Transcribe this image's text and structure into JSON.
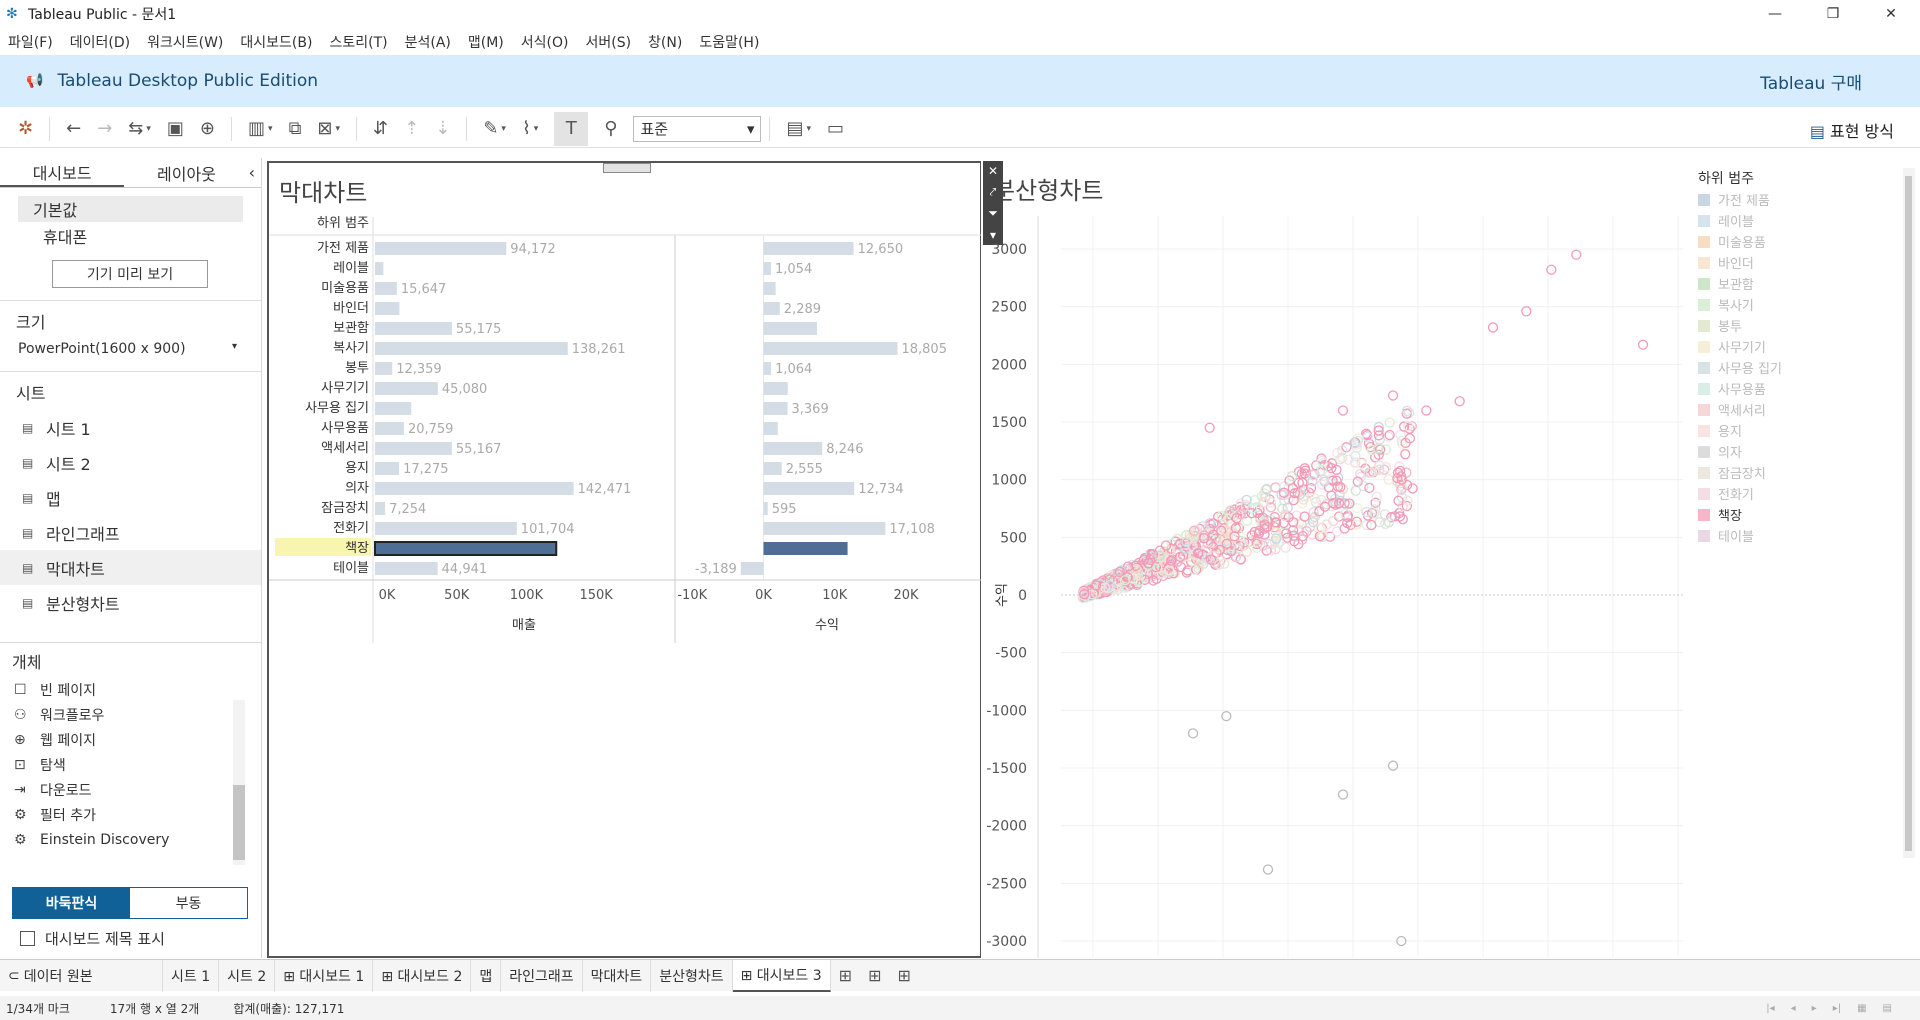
{
  "window": {
    "title": "Tableau Public - 문서1",
    "minimize": "—",
    "maximize": "❐",
    "close": "✕"
  },
  "menu": [
    "파일(F)",
    "데이터(D)",
    "워크시트(W)",
    "대시보드(B)",
    "스토리(T)",
    "분석(A)",
    "맵(M)",
    "서식(O)",
    "서버(S)",
    "창(N)",
    "도움말(H)"
  ],
  "banner": {
    "edition": "Tableau Desktop Public Edition",
    "buy": "Tableau 구매"
  },
  "toolbar": {
    "fit_select": "표준",
    "show_me": "표현 방식"
  },
  "sidebar": {
    "tabs": [
      "대시보드",
      "레이아웃"
    ],
    "collapse": "‹",
    "device_default": "기본값",
    "device_phone": "휴대폰",
    "preview_button": "기기 미리 보기",
    "size_title": "크기",
    "size_value": "PowerPoint(1600 x 900)",
    "sheets_title": "시트",
    "sheets": [
      "시트 1",
      "시트 2",
      "맵",
      "라인그래프",
      "막대차트",
      "분산형차트"
    ],
    "objects_title": "개체",
    "objects": [
      "빈 페이지",
      "워크플로우",
      "웹 페이지",
      "탐색",
      "다운로드",
      "필터 추가",
      "Einstein Discovery"
    ],
    "tiled": "바둑판식",
    "floating": "부동",
    "show_title": "대시보드 제목 표시"
  },
  "bar_chart": {
    "title": "막대차트",
    "row_header": "하위 범주",
    "x1_label": "매출",
    "x2_label": "수익",
    "x1_ticks": [
      "0K",
      "50K",
      "100K",
      "150K"
    ],
    "x2_ticks": [
      "-10K",
      "0K",
      "10K",
      "20K"
    ]
  },
  "chart_data": [
    {
      "type": "bar",
      "title": "막대차트",
      "categories": [
        "가전 제품",
        "레이블",
        "미술용품",
        "바인더",
        "보관함",
        "복사기",
        "봉투",
        "사무기기",
        "사무용 집기",
        "사무용품",
        "액세서리",
        "용지",
        "의자",
        "잠금장치",
        "전화기",
        "책장",
        "테이블"
      ],
      "series": [
        {
          "name": "매출",
          "values": [
            94172,
            6000,
            15647,
            17500,
            55175,
            138261,
            12359,
            45080,
            26000,
            20759,
            55167,
            17275,
            142471,
            7254,
            101704,
            130000,
            44941
          ],
          "labels": [
            "94,172",
            "",
            "15,647",
            "",
            "55,175",
            "138,261",
            "12,359",
            "45,080",
            "",
            "20,759",
            "55,167",
            "17,275",
            "142,471",
            "7,254",
            "101,704",
            "",
            "44,941"
          ]
        },
        {
          "name": "수익",
          "values": [
            12650,
            1054,
            1700,
            2289,
            7500,
            18805,
            1064,
            3400,
            3369,
            2000,
            8246,
            2555,
            12734,
            595,
            17108,
            11800,
            -3189
          ],
          "labels": [
            "12,650",
            "1,054",
            "",
            "2,289",
            "",
            "18,805",
            "1,064",
            "",
            "3,369",
            "",
            "8,246",
            "2,555",
            "12,734",
            "595",
            "17,108",
            "",
            "-3,189"
          ]
        }
      ],
      "highlight": "책장",
      "xlim_sales": [
        0,
        175000
      ],
      "xlim_profit": [
        -12000,
        28000
      ]
    },
    {
      "type": "scatter",
      "title": "분산형차트",
      "ylabel": "수익",
      "y_ticks": [
        3000,
        2500,
        2000,
        1500,
        1000,
        500,
        0,
        -500,
        -1000,
        -1500,
        -2000,
        -2500,
        -3000
      ],
      "ylim": [
        -3200,
        3300
      ],
      "points_sample": [
        [
          2900,
          2950
        ],
        [
          2750,
          2820
        ],
        [
          2600,
          2460
        ],
        [
          2400,
          2320
        ],
        [
          3300,
          2170
        ],
        [
          1500,
          1600
        ],
        [
          2000,
          1600
        ],
        [
          1800,
          1730
        ],
        [
          2200,
          1680
        ],
        [
          700,
          1450
        ],
        [
          1050,
          -2380
        ],
        [
          1850,
          -3000
        ],
        [
          600,
          -1200
        ],
        [
          800,
          -1050
        ],
        [
          1500,
          -1730
        ],
        [
          1800,
          -1480
        ]
      ]
    }
  ],
  "legend": {
    "title": "하위 범주",
    "items": [
      {
        "label": "가전 제품",
        "color": "#c9d6e3"
      },
      {
        "label": "레이블",
        "color": "#d6e4ee"
      },
      {
        "label": "미술용품",
        "color": "#f7ddc4"
      },
      {
        "label": "바인더",
        "color": "#f8e7d3"
      },
      {
        "label": "보관함",
        "color": "#cfe6cc"
      },
      {
        "label": "복사기",
        "color": "#dbeed6"
      },
      {
        "label": "봉투",
        "color": "#e4ead0"
      },
      {
        "label": "사무기기",
        "color": "#f6efd7"
      },
      {
        "label": "사무용 집기",
        "color": "#d8e3e5"
      },
      {
        "label": "사무용품",
        "color": "#dbeee6"
      },
      {
        "label": "액세서리",
        "color": "#f7d6d8"
      },
      {
        "label": "용지",
        "color": "#f9e3e3"
      },
      {
        "label": "의자",
        "color": "#dcdcdc"
      },
      {
        "label": "잠금장치",
        "color": "#ece8e0"
      },
      {
        "label": "전화기",
        "color": "#f5dde4"
      },
      {
        "label": "책장",
        "color": "#f4b6c8"
      },
      {
        "label": "테이블",
        "color": "#e8d9e2"
      }
    ],
    "active": "책장"
  },
  "bottom_tabs": [
    "데이터 원본",
    "시트 1",
    "시트 2",
    "⊞ 대시보드 1",
    "⊞ 대시보드 2",
    "맵",
    "라인그래프",
    "막대차트",
    "분산형차트",
    "⊞ 대시보드 3"
  ],
  "status": {
    "marks": "1/34개 마크",
    "rows_cols": "17개 행 x 열 2개",
    "sum": "합계(매출): 127,171"
  },
  "colors": {
    "accent": "#0f6197",
    "banner": "#d7ecfc",
    "bar": "#d4dde6",
    "highlight_bar": "#4e6e96"
  }
}
